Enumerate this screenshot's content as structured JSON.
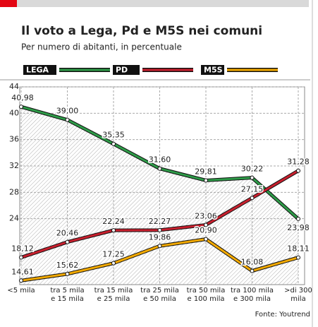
{
  "chart_data": {
    "type": "line",
    "title": "Il voto a Lega, Pd e M5S nei comuni",
    "subtitle": "Per numero di abitanti, in percentuale",
    "source": "Fonte: Youtrend",
    "categories": [
      "<5 mila",
      "tra 5 mila\ne 15 mila",
      "tra 15 mila\ne 25 mila",
      "tra 25 mila\ne 50 mila",
      "tra 50 mila\ne 100 mila",
      "tra 100 mila\ne 300 mila",
      ">di 300\nmila"
    ],
    "series": [
      {
        "name": "LEGA",
        "color": "#2e9b48",
        "values": [
          40.98,
          39.0,
          35.35,
          31.6,
          29.81,
          30.22,
          23.98
        ],
        "value_labels": [
          "40,98",
          "39,00",
          "35,35",
          "31,60",
          "29,81",
          "30,22",
          "23,98"
        ]
      },
      {
        "name": "PD",
        "color": "#c8202e",
        "values": [
          18.12,
          20.46,
          22.24,
          22.27,
          23.06,
          27.15,
          31.28
        ],
        "value_labels": [
          "18,12",
          "20,46",
          "22,24",
          "22,27",
          "23,06",
          "27,15",
          "31,28"
        ]
      },
      {
        "name": "M5S",
        "color": "#f2a900",
        "values": [
          14.61,
          15.62,
          17.25,
          19.86,
          20.9,
          16.08,
          18.11
        ],
        "value_labels": [
          "14,61",
          "15,62",
          "17,25",
          "19,86",
          "20,90",
          "16,08",
          "18,11"
        ]
      }
    ],
    "ylim": [
      14,
      44
    ],
    "yticks": [
      44,
      40,
      36,
      32,
      28,
      24
    ],
    "grid": true
  }
}
